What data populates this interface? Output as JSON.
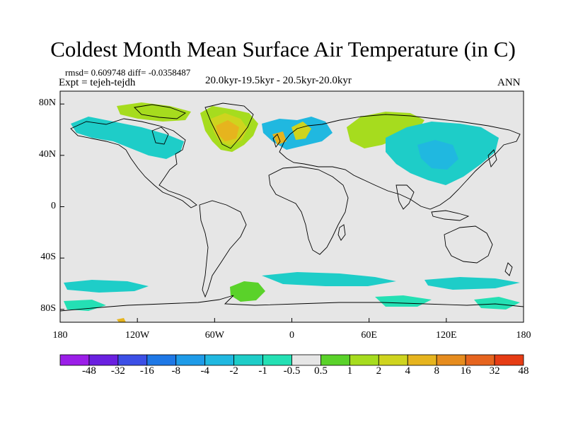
{
  "title": "Coldest Month Mean Surface Air Temperature (in C)",
  "stats_line": "rmsd= 0.609748 diff= -0.0358487",
  "experiment_line": "Expt = tejeh-tejdh",
  "period_line": "20.0kyr-19.5kyr - 20.5kyr-20.0kyr",
  "season_label": "ANN",
  "lat_labels": [
    "80N",
    "40N",
    "0",
    "40S",
    "80S"
  ],
  "lon_labels": [
    "180",
    "120W",
    "60W",
    "0",
    "60E",
    "120E",
    "180"
  ],
  "colorbar": {
    "labels": [
      "-48",
      "-32",
      "-16",
      "-8",
      "-4",
      "-2",
      "-1",
      "-0.5",
      "0.5",
      "1",
      "2",
      "4",
      "8",
      "16",
      "32",
      "48"
    ],
    "colors": [
      "#9b1ee8",
      "#6a20e0",
      "#3c4fe6",
      "#1e78e6",
      "#1e9be8",
      "#20b8e0",
      "#1ecdc8",
      "#24e0b4",
      "#e6e6e6",
      "#5ad22a",
      "#a6dc1e",
      "#cfd41e",
      "#e6b41e",
      "#e68c1e",
      "#e6641e",
      "#e63c14"
    ]
  },
  "map_background": "#e6e6e6"
}
